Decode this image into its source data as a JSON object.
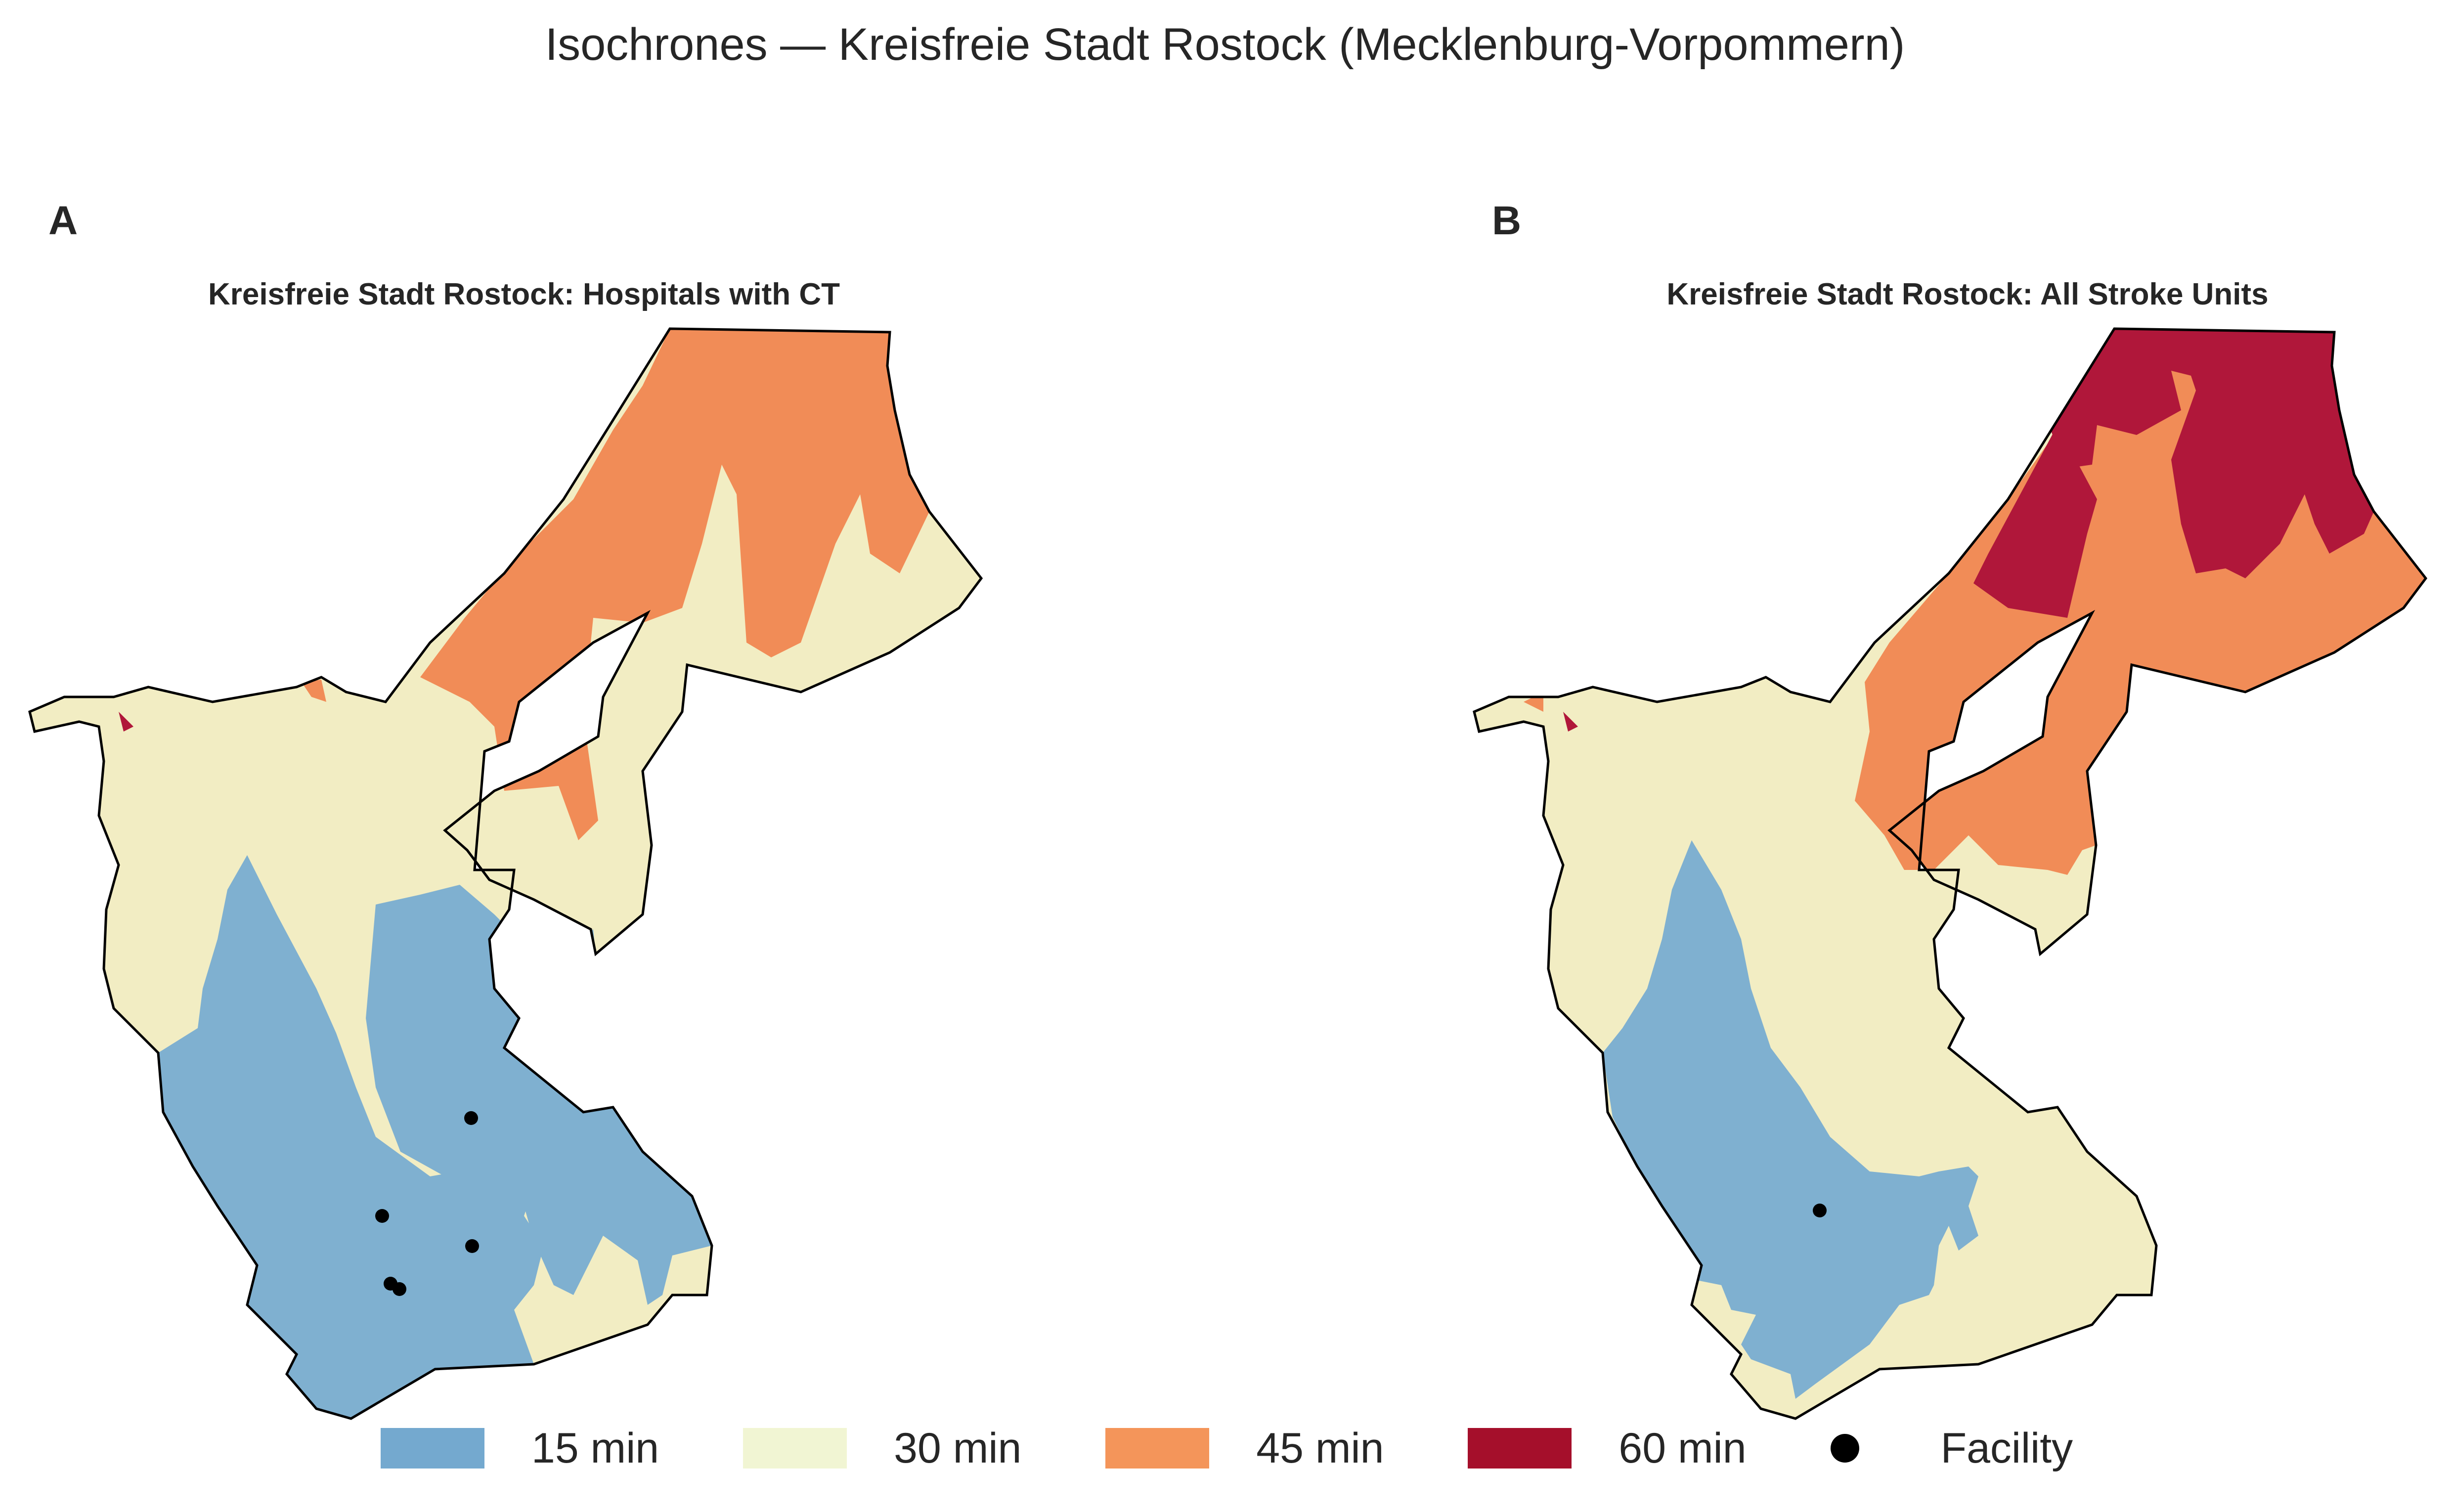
{
  "title": "Isochrones — Kreisfreie Stadt Rostock (Mecklenburg-Vorpommern)",
  "panels": [
    {
      "label": "A",
      "title": "Kreisfreie Stadt Rostock: Hospitals with CT",
      "facility_count": 5
    },
    {
      "label": "B",
      "title": "Kreisfreie Stadt Rostock: All Stroke Units",
      "facility_count": 1
    }
  ],
  "legend": [
    {
      "label": "15 min",
      "color": "#74a9cf"
    },
    {
      "label": "30 min",
      "color": "#f1f5d3"
    },
    {
      "label": "45 min",
      "color": "#f4955a"
    },
    {
      "label": "60 min",
      "color": "#a50f2b"
    },
    {
      "label": "Facility",
      "color": "#000000",
      "marker": "circle"
    }
  ],
  "colors": {
    "zone15": "#7fb0d0",
    "zone30": "#f2edc3",
    "zone45": "#f18c57",
    "zone60": "#b0173a",
    "boundary": "#000000"
  }
}
